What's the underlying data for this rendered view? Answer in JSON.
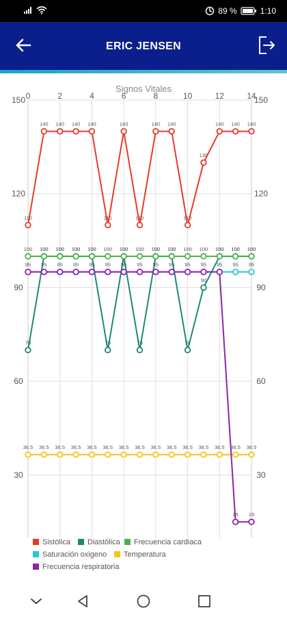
{
  "status_bar": {
    "battery": "89 %",
    "time": "1:10"
  },
  "header": {
    "title": "ERIC JENSEN"
  },
  "chart_data": {
    "type": "line",
    "title": "Signos Vitales",
    "x": [
      0,
      1,
      2,
      3,
      4,
      5,
      6,
      7,
      8,
      9,
      10,
      11,
      12,
      13,
      14
    ],
    "x_ticks": [
      "0",
      "2",
      "4",
      "6",
      "8",
      "10",
      "12",
      "14"
    ],
    "x_tick_values": [
      0,
      2,
      4,
      6,
      8,
      10,
      12,
      14
    ],
    "y_ticks": [
      "150",
      "120",
      "90",
      "60",
      "30"
    ],
    "y_tick_values": [
      150,
      120,
      90,
      60,
      30
    ],
    "xlim": [
      0,
      14
    ],
    "ylim": [
      10,
      150
    ],
    "grid": true,
    "legend_position": "bottom",
    "series": [
      {
        "name": "Sistólica",
        "color": "#e8392b",
        "values": [
          110,
          140,
          140,
          140,
          140,
          110,
          140,
          110,
          140,
          140,
          110,
          130,
          140,
          140,
          140
        ],
        "labels": [
          "110",
          "140",
          "140",
          "140",
          "140",
          "110",
          "140",
          "110",
          "140",
          "140",
          "110",
          "130",
          "140",
          "140",
          "140"
        ]
      },
      {
        "name": "Diastólica",
        "color": "#1a8a72",
        "values": [
          70,
          100,
          100,
          100,
          100,
          70,
          100,
          70,
          100,
          100,
          70,
          90,
          100,
          100,
          100
        ],
        "labels": [
          "70",
          "100",
          "100",
          "100",
          "100",
          "70",
          "100",
          "70",
          "100",
          "100",
          "70",
          "90",
          "100",
          "100",
          "100"
        ]
      },
      {
        "name": "Frecuencia cardiaca",
        "color": "#4caf50",
        "values": [
          100,
          100,
          100,
          100,
          100,
          100,
          100,
          100,
          100,
          100,
          100,
          100,
          100,
          100,
          100
        ],
        "labels": [
          "100",
          "100",
          "100",
          "100",
          "100",
          "100",
          "100",
          "100",
          "100",
          "100",
          "100",
          "100",
          "100",
          "100",
          "100"
        ]
      },
      {
        "name": "Saturación oxigeno",
        "color": "#26c6da",
        "values": [
          95,
          95,
          95,
          95,
          95,
          95,
          95,
          95,
          95,
          95,
          95,
          95,
          95,
          95,
          95
        ],
        "labels": [
          "95",
          "95",
          "95",
          "95",
          "95",
          "95",
          "95",
          "95",
          "95",
          "95",
          "95",
          "95",
          "95",
          "95",
          "95"
        ]
      },
      {
        "name": "Temperatura",
        "color": "#f5c518",
        "values": [
          36.5,
          36.5,
          36.5,
          36.5,
          36.5,
          36.5,
          36.5,
          36.5,
          36.5,
          36.5,
          36.5,
          36.5,
          36.5,
          36.5,
          36.5
        ],
        "labels": [
          "36.5",
          "36.5",
          "36.5",
          "36.5",
          "36.5",
          "36.5",
          "36.5",
          "36.5",
          "36.5",
          "36.5",
          "36.5",
          "36.5",
          "36.5",
          "36.5",
          "36.5"
        ]
      },
      {
        "name": "Frecuencia respiratoria",
        "color": "#8e24aa",
        "values": [
          95,
          95,
          95,
          95,
          95,
          95,
          95,
          95,
          95,
          95,
          95,
          95,
          95,
          15,
          15
        ],
        "labels": [
          "",
          "",
          "",
          "",
          "",
          "",
          "",
          "",
          "",
          "",
          "",
          "",
          "",
          "15",
          "15"
        ]
      }
    ]
  },
  "colors": {
    "app_bar": "#0b1f8c",
    "accent": "#1fa2c8"
  },
  "icons": {
    "back": "arrow-left-icon",
    "logout": "logout-icon",
    "nav_down": "chevron-down-icon",
    "nav_back": "triangle-back-icon",
    "nav_home": "circle-home-icon",
    "nav_recents": "square-recents-icon"
  }
}
